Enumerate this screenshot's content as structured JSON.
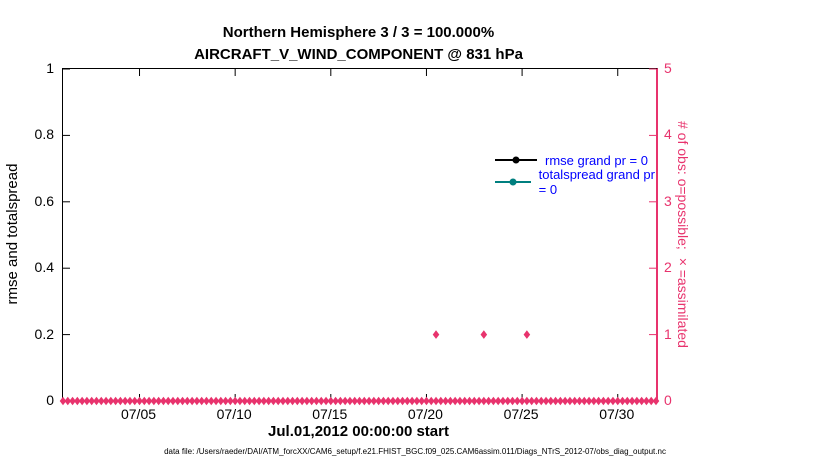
{
  "title": {
    "line1": "Northern Hemisphere 3 / 3 = 100.000%",
    "line2": "AIRCRAFT_V_WIND_COMPONENT @ 831 hPa"
  },
  "left_axis": {
    "label": "rmse and totalspread"
  },
  "right_axis": {
    "label": "# of obs: o=possible; ×=assimilated",
    "color": "#e8336d"
  },
  "x_axis": {
    "label": "Jul.01,2012 00:00:00 start"
  },
  "legend": {
    "text_color": "#0000ff",
    "items": [
      {
        "label": "rmse grand pr = 0",
        "color": "#000000"
      },
      {
        "label": "totalspread grand pr = 0",
        "color": "#007f7f"
      }
    ]
  },
  "footer": "data file: /Users/raeder/DAI/ATM_forcXX/CAM6_setup/f.e21.FHIST_BGC.f09_025.CAM6assim.011/Diags_NTrS_2012-07/obs_diag_output.nc",
  "chart_data": {
    "type": "scatter",
    "title": "Northern Hemisphere 3 / 3 = 100.000% — AIRCRAFT_V_WIND_COMPONENT @ 831 hPa",
    "xlabel": "Jul.01,2012 00:00:00 start",
    "ylabel_left": "rmse and totalspread",
    "ylabel_right": "# of obs: o=possible; ×=assimilated",
    "grid": false,
    "legend_position": "top-right-inside",
    "x_range_days": [
      0,
      31
    ],
    "ylim_left": [
      0,
      1
    ],
    "ylim_right": [
      0,
      5
    ],
    "x_tick_days": [
      4,
      9,
      14,
      19,
      24,
      29
    ],
    "x_tick_labels": [
      "07/05",
      "07/10",
      "07/15",
      "07/20",
      "07/25",
      "07/30"
    ],
    "left_tick_values": [
      0,
      0.2,
      0.4,
      0.6,
      0.8,
      1
    ],
    "left_tick_labels": [
      "0",
      "0.2",
      "0.4",
      "0.6",
      "0.8",
      "1"
    ],
    "right_tick_values": [
      0,
      1,
      2,
      3,
      4,
      5
    ],
    "right_tick_labels": [
      "0",
      "1",
      "2",
      "3",
      "4",
      "5"
    ],
    "series": [
      {
        "name": "rmse grand pr = 0",
        "axis": "left",
        "color": "#000000",
        "marker": "circle",
        "x": [],
        "y": [],
        "note": "no points plotted (pr = 0)"
      },
      {
        "name": "totalspread grand pr = 0",
        "axis": "left",
        "color": "#007f7f",
        "marker": "circle",
        "x": [],
        "y": [],
        "note": "no points plotted (pr = 0)"
      },
      {
        "name": "number of observations",
        "axis": "right",
        "color": "#e8336d",
        "marker": "diamond",
        "baseline": {
          "x_start_day": 0,
          "x_end_day": 31,
          "x_step_days": 0.25,
          "y": 0
        },
        "spikes": [
          {
            "x_day": 19.5,
            "y": 1
          },
          {
            "x_day": 22.0,
            "y": 1
          },
          {
            "x_day": 24.25,
            "y": 1
          }
        ]
      }
    ]
  }
}
